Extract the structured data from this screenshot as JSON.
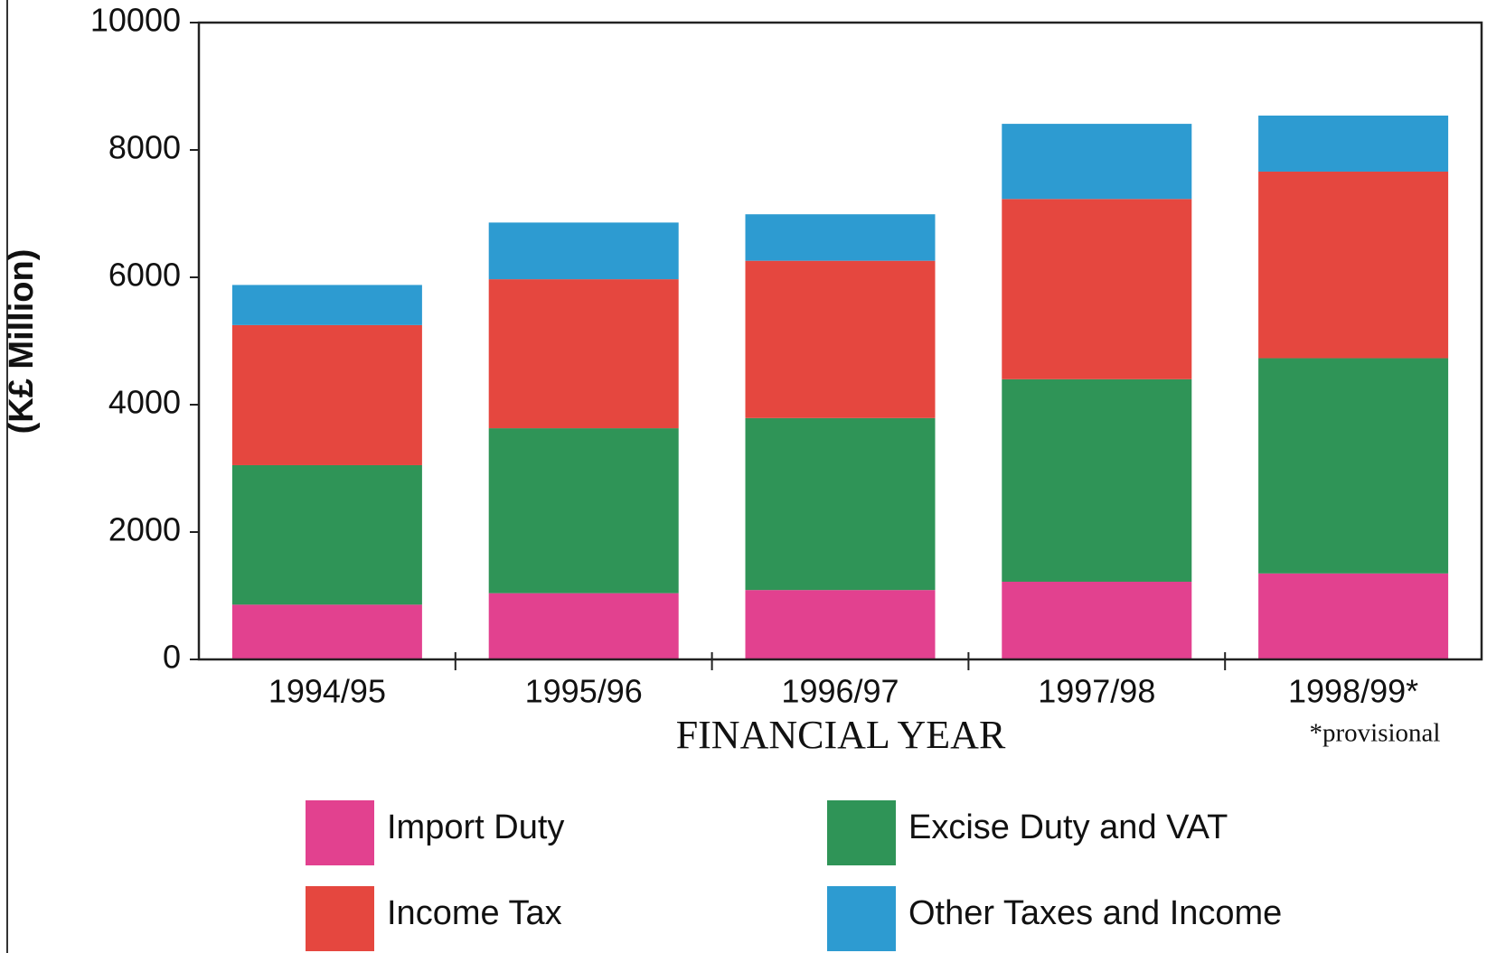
{
  "chart_data": {
    "type": "stacked_bar",
    "y_label": "(K£ Million)",
    "x_label": "FINANCIAL  YEAR",
    "annotation": "*provisional",
    "categories": [
      "1994/95",
      "1995/96",
      "1996/97",
      "1997/98",
      "1998/99*"
    ],
    "series": [
      {
        "name": "Import Duty",
        "color": "#e2418f",
        "values": [
          860,
          1040,
          1090,
          1220,
          1350
        ]
      },
      {
        "name": "Excise Duty and VAT",
        "color": "#2f9457",
        "values": [
          2190,
          2590,
          2700,
          3180,
          3380
        ]
      },
      {
        "name": "Income Tax",
        "color": "#e5473f",
        "values": [
          2200,
          2340,
          2470,
          2830,
          2930
        ]
      },
      {
        "name": "Other Taxes and Income",
        "color": "#2d9bd1",
        "values": [
          630,
          890,
          730,
          1180,
          880
        ]
      }
    ],
    "ylim": [
      0,
      10000
    ],
    "yticks": [
      0,
      2000,
      4000,
      6000,
      8000,
      10000
    ],
    "grid": false
  }
}
